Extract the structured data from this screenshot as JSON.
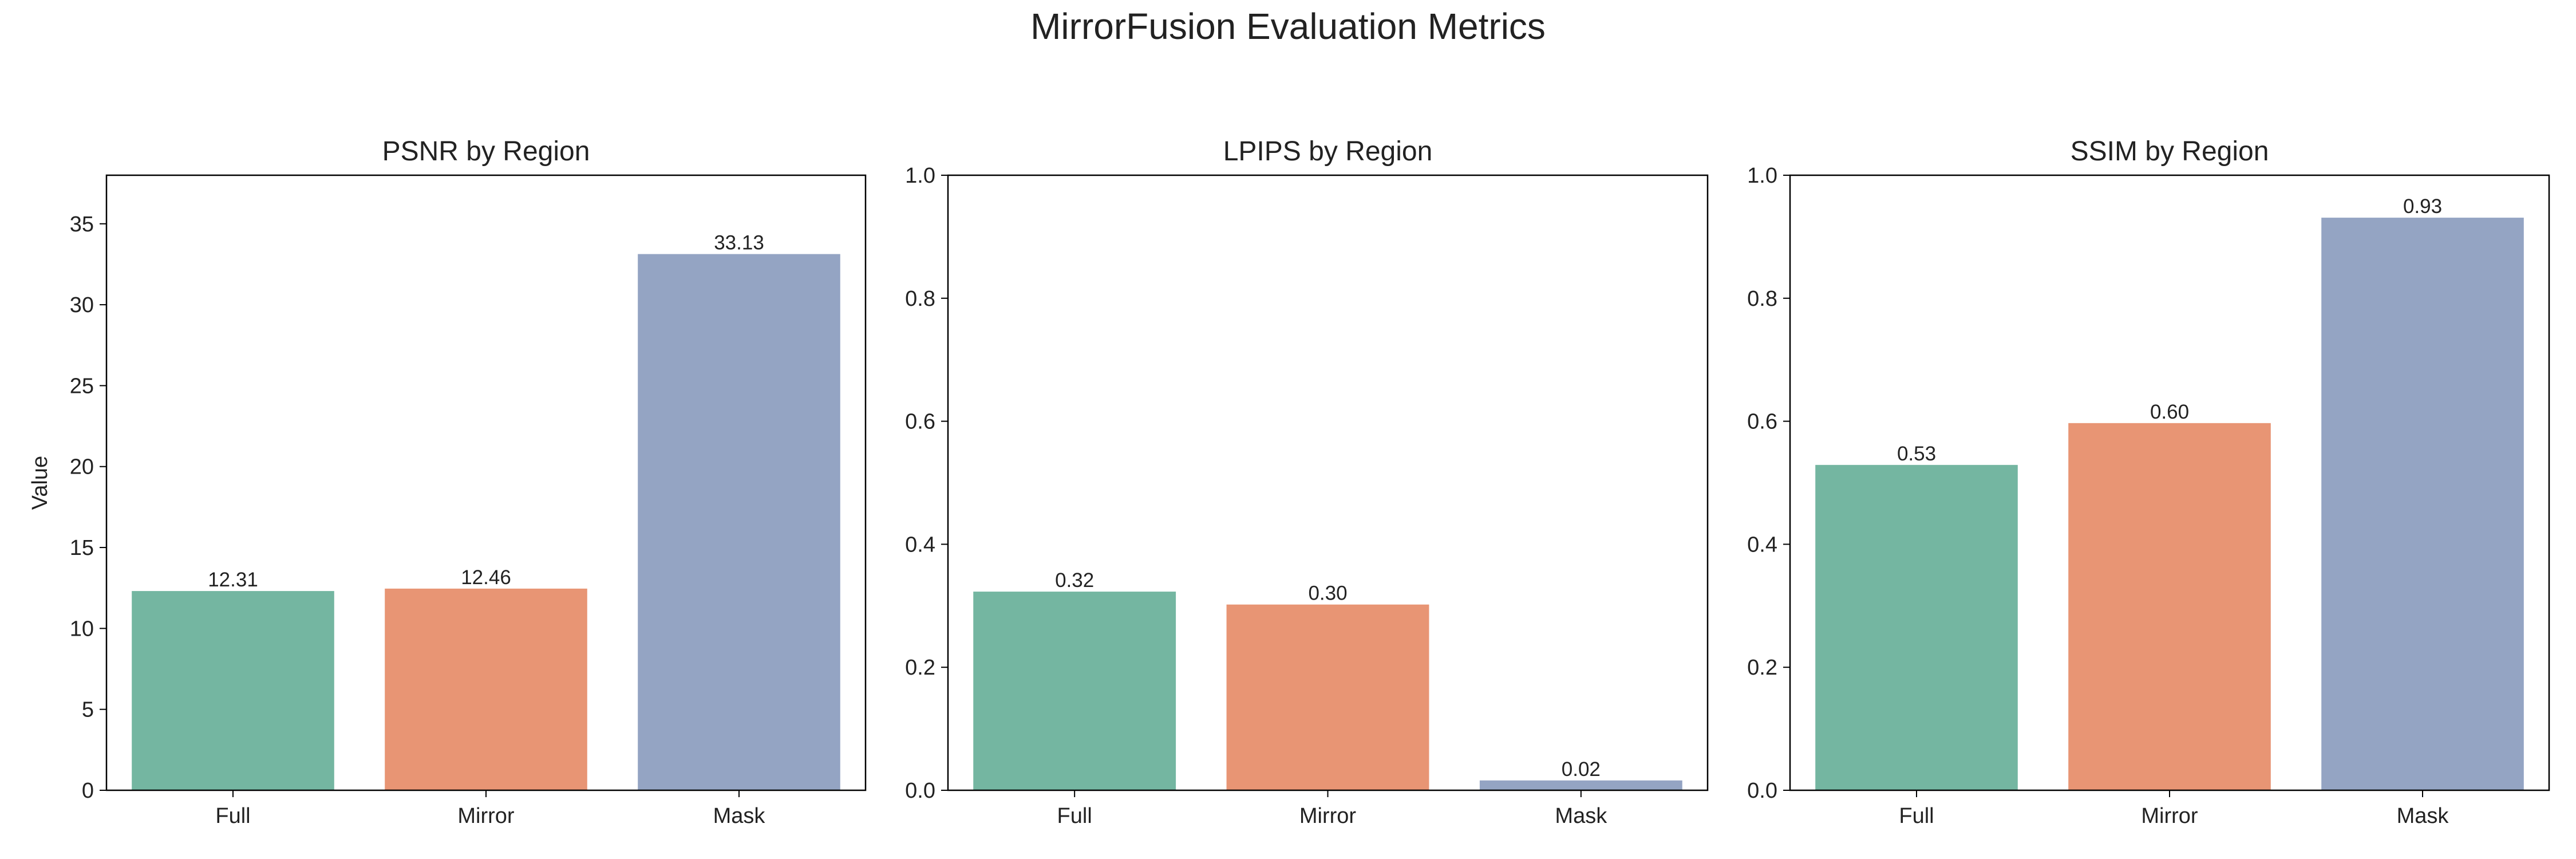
{
  "figure_title": "MirrorFusion Evaluation Metrics",
  "chart_data": [
    {
      "type": "bar",
      "title": "PSNR by Region",
      "categories": [
        "Full",
        "Mirror",
        "Mask"
      ],
      "values": [
        12.31,
        12.46,
        33.13
      ],
      "value_labels": [
        "12.31",
        "12.46",
        "33.13"
      ],
      "ylabel": "Value",
      "ylim": [
        0,
        38
      ],
      "yticks": [
        0,
        5,
        10,
        15,
        20,
        25,
        30,
        35
      ],
      "ytick_labels": [
        "0",
        "5",
        "10",
        "15",
        "20",
        "25",
        "30",
        "35"
      ],
      "colors": [
        "#74b6a1",
        "#e89574",
        "#94a4c3"
      ],
      "grid": false
    },
    {
      "type": "bar",
      "title": "LPIPS by Region",
      "categories": [
        "Full",
        "Mirror",
        "Mask"
      ],
      "values": [
        0.323,
        0.302,
        0.016
      ],
      "value_labels": [
        "0.32",
        "0.30",
        "0.02"
      ],
      "ylabel": "",
      "ylim": [
        0,
        1.0
      ],
      "yticks": [
        0,
        0.2,
        0.4,
        0.6,
        0.8,
        1.0
      ],
      "ytick_labels": [
        "0.0",
        "0.2",
        "0.4",
        "0.6",
        "0.8",
        "1.0"
      ],
      "colors": [
        "#74b6a1",
        "#e89574",
        "#94a4c3"
      ],
      "grid": false
    },
    {
      "type": "bar",
      "title": "SSIM by Region",
      "categories": [
        "Full",
        "Mirror",
        "Mask"
      ],
      "values": [
        0.529,
        0.597,
        0.931
      ],
      "value_labels": [
        "0.53",
        "0.60",
        "0.93"
      ],
      "ylabel": "",
      "ylim": [
        0,
        1.0
      ],
      "yticks": [
        0,
        0.2,
        0.4,
        0.6,
        0.8,
        1.0
      ],
      "ytick_labels": [
        "0.0",
        "0.2",
        "0.4",
        "0.6",
        "0.8",
        "1.0"
      ],
      "colors": [
        "#74b6a1",
        "#e89574",
        "#94a4c3"
      ],
      "grid": false
    }
  ]
}
